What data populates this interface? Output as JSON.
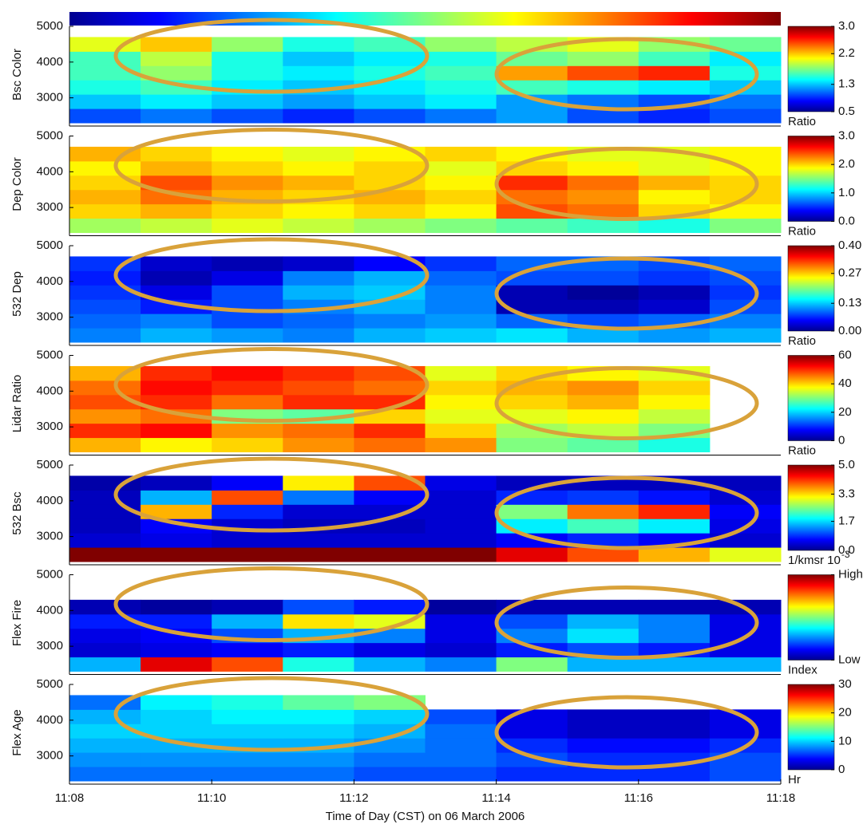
{
  "chart_data": [
    {
      "type": "heatmap",
      "ylabel": "Bsc Color",
      "ylim": [
        2300,
        5000
      ],
      "yticks": [
        3000,
        4000,
        5000
      ],
      "y_bins": [
        2300,
        2700,
        3100,
        3500,
        3900,
        4300,
        4700
      ],
      "clim": [
        0.5,
        3
      ],
      "cticks": [
        0.5,
        1.3,
        2.2,
        {
          "value": 3,
          "label": "3.0"
        }
      ],
      "clabel": "Ratio",
      "z": [
        [
          1.0,
          1.1,
          1.0,
          0.9,
          1.0,
          1.1,
          1.2,
          1.0,
          0.9,
          1.0
        ],
        [
          1.3,
          1.4,
          1.3,
          1.2,
          1.3,
          1.4,
          1.2,
          1.1,
          1.0,
          1.1
        ],
        [
          1.5,
          1.6,
          1.4,
          1.3,
          1.4,
          1.5,
          1.6,
          1.5,
          1.4,
          1.3
        ],
        [
          1.6,
          1.8,
          1.5,
          1.4,
          1.5,
          1.6,
          2.3,
          2.5,
          2.6,
          1.5
        ],
        [
          1.6,
          1.9,
          1.5,
          1.3,
          1.4,
          1.5,
          1.7,
          1.8,
          1.6,
          1.4
        ],
        [
          2.0,
          2.2,
          1.8,
          1.5,
          1.6,
          1.8,
          1.9,
          2.0,
          1.8,
          1.7
        ]
      ]
    },
    {
      "type": "heatmap",
      "ylabel": "Dep Color",
      "ylim": [
        2300,
        5000
      ],
      "yticks": [
        3000,
        4000,
        5000
      ],
      "y_bins": [
        2300,
        2700,
        3100,
        3500,
        3900,
        4300,
        4700
      ],
      "clim": [
        0,
        3
      ],
      "cticks": [
        {
          "value": 0,
          "label": "0.0"
        },
        {
          "value": 1,
          "label": "1.0"
        },
        {
          "value": 2,
          "label": "2.0"
        },
        {
          "value": 3,
          "label": "3.0"
        }
      ],
      "clabel": "Ratio",
      "z": [
        [
          1.6,
          1.7,
          1.8,
          1.7,
          1.6,
          1.5,
          1.4,
          1.3,
          1.2,
          1.5
        ],
        [
          2.0,
          2.1,
          2.0,
          1.9,
          2.0,
          1.9,
          2.4,
          2.3,
          2.0,
          1.9
        ],
        [
          2.1,
          2.3,
          2.1,
          2.0,
          2.1,
          2.0,
          2.3,
          2.2,
          1.9,
          2.0
        ],
        [
          2.0,
          2.4,
          2.2,
          2.1,
          2.0,
          1.9,
          2.5,
          2.3,
          2.1,
          2.0
        ],
        [
          1.9,
          2.1,
          2.0,
          1.9,
          2.0,
          1.8,
          2.0,
          1.9,
          1.8,
          1.9
        ],
        [
          2.1,
          2.0,
          1.9,
          1.8,
          1.9,
          2.0,
          1.9,
          1.8,
          1.8,
          1.9
        ]
      ]
    },
    {
      "type": "heatmap",
      "ylabel": "532 Dep",
      "ylim": [
        2300,
        5000
      ],
      "yticks": [
        3000,
        4000,
        5000
      ],
      "y_bins": [
        2300,
        2700,
        3100,
        3500,
        3900,
        4300,
        4700
      ],
      "clim": [
        0,
        0.4
      ],
      "cticks": [
        {
          "value": 0,
          "label": "0.00"
        },
        0.13,
        0.27,
        {
          "value": 0.4,
          "label": "0.40"
        }
      ],
      "clabel": "Ratio",
      "z": [
        [
          0.1,
          0.12,
          0.11,
          0.1,
          0.12,
          0.13,
          0.14,
          0.12,
          0.11,
          0.12
        ],
        [
          0.09,
          0.1,
          0.08,
          0.09,
          0.1,
          0.11,
          0.09,
          0.08,
          0.09,
          0.1
        ],
        [
          0.08,
          0.06,
          0.08,
          0.1,
          0.12,
          0.1,
          0.02,
          0.02,
          0.03,
          0.08
        ],
        [
          0.07,
          0.04,
          0.08,
          0.12,
          0.13,
          0.1,
          0.02,
          0.01,
          0.02,
          0.07
        ],
        [
          0.06,
          0.02,
          0.04,
          0.1,
          0.12,
          0.09,
          0.08,
          0.08,
          0.07,
          0.08
        ],
        [
          0.07,
          0.03,
          0.02,
          0.03,
          0.05,
          0.07,
          0.09,
          0.09,
          0.08,
          0.09
        ]
      ]
    },
    {
      "type": "heatmap",
      "ylabel": "Lidar Ratio",
      "ylim": [
        2300,
        5000
      ],
      "yticks": [
        3000,
        4000,
        5000
      ],
      "y_bins": [
        2300,
        2700,
        3100,
        3500,
        3900,
        4300,
        4700
      ],
      "clim": [
        0,
        60
      ],
      "cticks": [
        0,
        20,
        40,
        60
      ],
      "clabel": "Ratio",
      "z": [
        [
          42,
          38,
          40,
          44,
          46,
          44,
          30,
          28,
          24,
          null
        ],
        [
          50,
          52,
          44,
          46,
          50,
          40,
          32,
          34,
          30,
          null
        ],
        [
          44,
          46,
          30,
          28,
          40,
          36,
          36,
          38,
          34,
          null
        ],
        [
          48,
          50,
          46,
          50,
          50,
          38,
          40,
          42,
          38,
          null
        ],
        [
          46,
          52,
          50,
          48,
          46,
          40,
          42,
          44,
          40,
          null
        ],
        [
          42,
          50,
          52,
          50,
          48,
          36,
          40,
          38,
          36,
          null
        ]
      ]
    },
    {
      "type": "heatmap",
      "ylabel": "532 Bsc",
      "ylim": [
        2300,
        5000
      ],
      "yticks": [
        3000,
        4000,
        5000
      ],
      "y_bins": [
        2300,
        2700,
        3100,
        3500,
        3900,
        4300,
        4700
      ],
      "clim": [
        0,
        5
      ],
      "cticks": [
        {
          "value": 0,
          "label": "0.0"
        },
        1.7,
        3.3,
        {
          "value": 5,
          "label": "5.0"
        }
      ],
      "clabel": "1/kmsr 10",
      "clabel_exp": "-3",
      "z": [
        [
          5.0,
          5.0,
          5.0,
          5.0,
          5.0,
          5.0,
          4.5,
          4.0,
          3.5,
          3.0
        ],
        [
          0.4,
          0.5,
          0.4,
          0.4,
          0.4,
          0.4,
          0.6,
          0.8,
          0.6,
          0.4
        ],
        [
          0.3,
          0.6,
          0.4,
          0.3,
          0.3,
          0.4,
          1.8,
          2.2,
          1.8,
          0.5
        ],
        [
          0.3,
          3.5,
          0.8,
          0.4,
          0.4,
          0.4,
          2.5,
          3.8,
          4.2,
          0.6
        ],
        [
          0.3,
          1.5,
          4.0,
          1.2,
          0.6,
          0.4,
          0.8,
          0.9,
          0.7,
          0.4
        ],
        [
          0.2,
          0.3,
          0.6,
          3.2,
          4.0,
          0.5,
          0.3,
          0.3,
          0.3,
          0.3
        ]
      ]
    },
    {
      "type": "heatmap",
      "ylabel": "Flex Fire",
      "ylim": [
        2300,
        5000
      ],
      "yticks": [
        3000,
        4000,
        5000
      ],
      "y_bins": [
        2300,
        2700,
        3100,
        3500,
        3900,
        4300,
        4700
      ],
      "clim": [
        0,
        1
      ],
      "cticks": [
        {
          "value": 0,
          "label": "Low"
        },
        {
          "value": 1,
          "label": "High"
        }
      ],
      "clabel": "Index",
      "z": [
        [
          0.3,
          0.9,
          0.8,
          0.4,
          0.3,
          0.25,
          0.5,
          0.3,
          0.3,
          0.3
        ],
        [
          0.08,
          0.1,
          0.12,
          0.15,
          0.1,
          0.08,
          0.15,
          0.2,
          0.15,
          0.1
        ],
        [
          0.1,
          0.12,
          0.2,
          0.3,
          0.25,
          0.1,
          0.25,
          0.35,
          0.25,
          0.1
        ],
        [
          0.15,
          0.15,
          0.3,
          0.65,
          0.6,
          0.1,
          0.2,
          0.3,
          0.25,
          0.1
        ],
        [
          0.05,
          0.03,
          0.05,
          0.2,
          0.15,
          0.03,
          0.05,
          0.05,
          0.05,
          0.05
        ],
        [
          null,
          null,
          null,
          null,
          null,
          null,
          null,
          null,
          null,
          null
        ]
      ]
    },
    {
      "type": "heatmap",
      "ylabel": "Flex Age",
      "ylim": [
        2300,
        5000
      ],
      "yticks": [
        3000,
        4000,
        5000
      ],
      "y_bins": [
        2300,
        2700,
        3100,
        3500,
        3900,
        4300,
        4700
      ],
      "clim": [
        0,
        30
      ],
      "cticks": [
        0,
        10,
        20,
        30
      ],
      "clabel": "Hr",
      "xlim": [
        "11:08",
        "11:18"
      ],
      "xticks": [
        "11:08",
        "11:10",
        "11:12",
        "11:14",
        "11:16",
        "11:18"
      ],
      "xlabel": "Time of Day (CST) on 06 March 2006",
      "z": [
        [
          7,
          7,
          7,
          7,
          6,
          6,
          5,
          5,
          5,
          6
        ],
        [
          8,
          8,
          8,
          8,
          7,
          7,
          6,
          5,
          5,
          6
        ],
        [
          9,
          9,
          9,
          9,
          8,
          7,
          5,
          4,
          4,
          5
        ],
        [
          10,
          10,
          10,
          10,
          9,
          7,
          3,
          2,
          2,
          3
        ],
        [
          9,
          10,
          11,
          11,
          10,
          6,
          3,
          2,
          2,
          3
        ],
        [
          7,
          11,
          12,
          14,
          15,
          null,
          null,
          null,
          null,
          null
        ]
      ]
    }
  ]
}
